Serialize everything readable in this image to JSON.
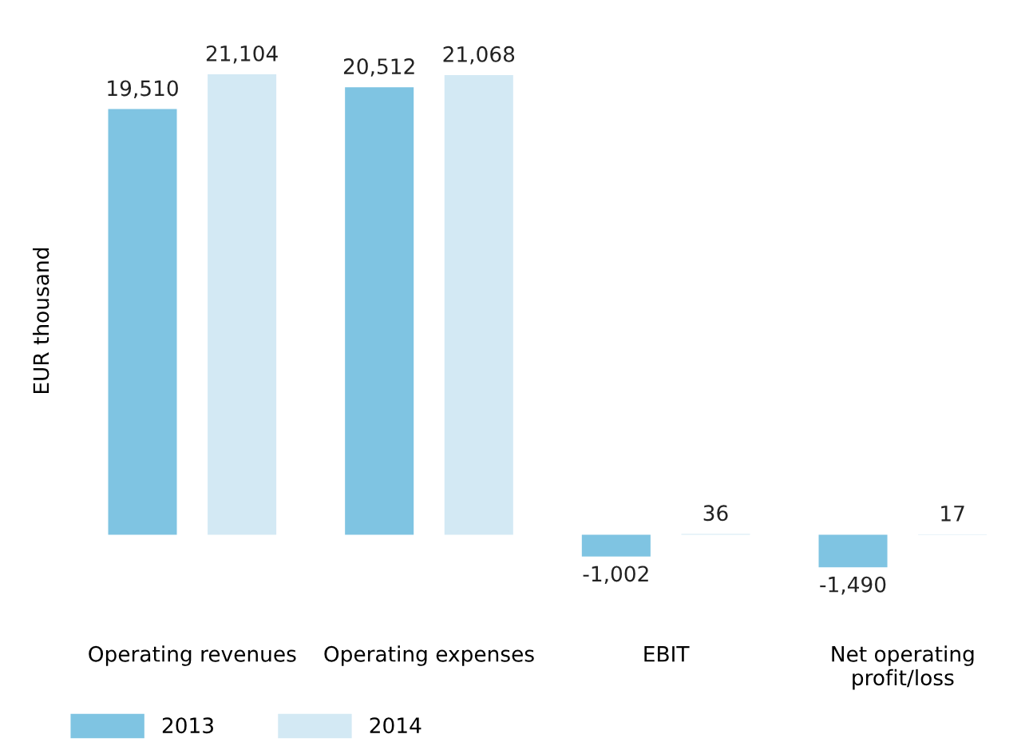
{
  "chart_data": {
    "type": "bar",
    "ylabel": "EUR thousand",
    "categories": [
      "Operating revenues",
      "Operating expenses",
      "EBIT",
      "Net operating\nprofit/loss"
    ],
    "series": [
      {
        "name": "2013",
        "color": "#7fc4e2",
        "values": [
          19510,
          20512,
          -1002,
          -1490
        ],
        "value_labels": [
          "19,510",
          "20,512",
          "-1,002",
          "-1,490"
        ]
      },
      {
        "name": "2014",
        "color": "#d3e9f4",
        "values": [
          21104,
          21068,
          36,
          17
        ],
        "value_labels": [
          "21,104",
          "21,068",
          "36",
          "17"
        ]
      }
    ],
    "grid": false,
    "legend": "bottom left"
  }
}
